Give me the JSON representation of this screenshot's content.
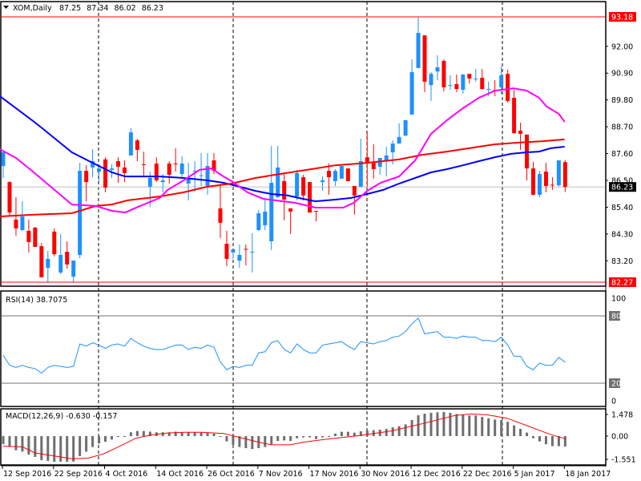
{
  "header": {
    "symbol": "XOM,Daily",
    "open": "87.25",
    "high": "87.34",
    "low": "86.02",
    "close": "86.23"
  },
  "price_axis": {
    "ticks": [
      "92.00",
      "90.90",
      "89.80",
      "88.70",
      "87.60",
      "86.50",
      "85.40",
      "84.30",
      "83.20"
    ],
    "high_line_label": "93.18",
    "low_line_label": "82.27",
    "bid_label": "86.23"
  },
  "rsi": {
    "label": "RSI(14) 38.7075",
    "axis": [
      "100",
      "80",
      "20",
      "0"
    ],
    "values": [
      45,
      36,
      34,
      36,
      34,
      33,
      29,
      34,
      36,
      35,
      34,
      35,
      55,
      53,
      56,
      54,
      51,
      54,
      55,
      53,
      60,
      56,
      53,
      51,
      50,
      50,
      52,
      54,
      54,
      50,
      52,
      51,
      54,
      52,
      39,
      32,
      35,
      34,
      36,
      36,
      47,
      48,
      56,
      58,
      50,
      47,
      55,
      50,
      47,
      47,
      54,
      55,
      56,
      57,
      53,
      50,
      57,
      56,
      55,
      57,
      58,
      61,
      62,
      66,
      73,
      78,
      64,
      65,
      66,
      61,
      61,
      60,
      62,
      61,
      61,
      58,
      58,
      57,
      61,
      54,
      44,
      44,
      35,
      32,
      38,
      36,
      36,
      43,
      38.71
    ]
  },
  "macd": {
    "label": "MACD(12,26,9) -0.630 -0.157",
    "axis": [
      "1.478",
      "0.00",
      "-1.551"
    ],
    "histogram": [
      -0.49,
      -0.65,
      -0.86,
      -0.94,
      -1.12,
      -1.26,
      -1.46,
      -1.5,
      -1.55,
      -1.55,
      -1.55,
      -1.54,
      -1.21,
      -0.94,
      -0.66,
      -0.45,
      -0.34,
      -0.21,
      -0.05,
      -0.02,
      0.23,
      0.31,
      0.31,
      0.27,
      0.23,
      0.23,
      0.23,
      0.27,
      0.23,
      0.23,
      0.23,
      0.23,
      0.19,
      0.15,
      -0.03,
      -0.32,
      -0.53,
      -0.66,
      -0.73,
      -0.78,
      -0.73,
      -0.66,
      -0.49,
      -0.29,
      -0.26,
      -0.29,
      -0.13,
      -0.08,
      -0.08,
      -0.18,
      -0.08,
      -0.02,
      0.15,
      0.26,
      0.26,
      0.21,
      0.29,
      0.34,
      0.36,
      0.39,
      0.44,
      0.53,
      0.6,
      0.71,
      0.97,
      1.26,
      1.36,
      1.41,
      1.44,
      1.46,
      1.41,
      1.34,
      1.28,
      1.25,
      1.25,
      1.16,
      1.08,
      1.0,
      0.97,
      0.87,
      0.65,
      0.44,
      0.21,
      -0.13,
      -0.32,
      -0.49,
      -0.61,
      -0.61,
      -0.63
    ],
    "signal": [
      [
        0,
        -0.61
      ],
      [
        3,
        -0.65
      ],
      [
        5,
        -1.02
      ],
      [
        10.75,
        -1.37
      ],
      [
        13.25,
        -1.34
      ],
      [
        15.75,
        -1.07
      ],
      [
        18.25,
        -0.61
      ],
      [
        20.75,
        -0.13
      ],
      [
        23.25,
        0.08
      ],
      [
        25.75,
        0.19
      ],
      [
        28.25,
        0.23
      ],
      [
        31.2,
        0.23
      ],
      [
        34.5,
        0.16
      ],
      [
        37,
        -0.08
      ],
      [
        39.5,
        -0.32
      ],
      [
        42,
        -0.53
      ],
      [
        44.9,
        -0.53
      ],
      [
        47,
        -0.37
      ],
      [
        50.75,
        -0.18
      ],
      [
        55.75,
        0.03
      ],
      [
        60.75,
        0.31
      ],
      [
        65.75,
        0.76
      ],
      [
        70.75,
        1.25
      ],
      [
        73.25,
        1.34
      ],
      [
        75.75,
        1.29
      ],
      [
        78.9,
        1.08
      ],
      [
        82.25,
        0.6
      ],
      [
        85.6,
        0.11
      ],
      [
        88,
        -0.157
      ]
    ]
  },
  "dates": [
    "12 Sep 2016",
    "22 Sep 2016",
    "4 Oct 2016",
    "14 Oct 2016",
    "26 Oct 2016",
    "7 Nov 2016",
    "17 Nov 2016",
    "30 Nov 2016",
    "12 Dec 2016",
    "22 Dec 2016",
    "5 Jan 2017",
    "18 Jan 2017"
  ],
  "colors": {
    "bull": "#1E90FF",
    "bear": "#FF0000",
    "ma_blue": "#0000FF",
    "ma_red": "#FF0000",
    "ma_magenta": "#FF00FF",
    "rsi": "#1E90FF",
    "macd_hist": "#6E6E6E",
    "macd_signal": "#FF0000"
  },
  "chart_data": {
    "type": "candlestick",
    "title": "XOM,Daily",
    "ylim": [
      82.1,
      93.18
    ],
    "candles_ohlc": [
      [
        87.09,
        87.68,
        86.6,
        87.65
      ],
      [
        86.43,
        86.47,
        85.02,
        85.18
      ],
      [
        84.89,
        85.81,
        84.23,
        84.53
      ],
      [
        84.46,
        85.64,
        84.43,
        85.02
      ],
      [
        84.43,
        84.89,
        83.54,
        83.97
      ],
      [
        84.56,
        84.59,
        83.77,
        83.77
      ],
      [
        83.8,
        83.93,
        82.52,
        82.52
      ],
      [
        82.91,
        83.61,
        82.29,
        83.28
      ],
      [
        84.4,
        84.53,
        83.38,
        83.47
      ],
      [
        82.72,
        84.3,
        82.65,
        83.44
      ],
      [
        83.57,
        84.0,
        82.88,
        83.05
      ],
      [
        82.55,
        83.21,
        82.29,
        83.21
      ],
      [
        83.44,
        87.22,
        83.31,
        86.89
      ],
      [
        86.89,
        87.12,
        85.64,
        86.43
      ],
      [
        87.03,
        87.78,
        86.63,
        87.29
      ],
      [
        86.86,
        87.16,
        86.47,
        86.99
      ],
      [
        87.36,
        87.45,
        86.01,
        86.2
      ],
      [
        86.93,
        87.16,
        86.6,
        86.99
      ],
      [
        87.29,
        87.45,
        86.4,
        87.06
      ],
      [
        87.03,
        87.32,
        86.43,
        86.8
      ],
      [
        87.52,
        88.64,
        87.52,
        88.47
      ],
      [
        88.14,
        88.21,
        87.29,
        87.75
      ],
      [
        87.16,
        87.68,
        86.7,
        87.14
      ],
      [
        86.24,
        86.86,
        85.41,
        86.6
      ],
      [
        87.19,
        87.45,
        86.43,
        86.5
      ],
      [
        86.43,
        86.76,
        86.01,
        86.5
      ],
      [
        87.19,
        87.29,
        86.37,
        86.73
      ],
      [
        87.19,
        87.82,
        86.86,
        87.16
      ],
      [
        86.76,
        87.49,
        86.6,
        87.19
      ],
      [
        86.37,
        87.22,
        85.68,
        86.6
      ],
      [
        86.86,
        87.29,
        86.04,
        86.89
      ],
      [
        86.7,
        87.62,
        86.27,
        86.71
      ],
      [
        86.27,
        87.62,
        85.91,
        87.09
      ],
      [
        87.32,
        87.62,
        86.76,
        86.89
      ],
      [
        85.35,
        86.34,
        84.13,
        84.76
      ],
      [
        83.9,
        84.43,
        82.98,
        83.28
      ],
      [
        83.54,
        83.67,
        83.28,
        83.67
      ],
      [
        83.21,
        83.87,
        82.91,
        83.44
      ],
      [
        83.69,
        83.87,
        83.01,
        83.66
      ],
      [
        83.56,
        84.33,
        82.72,
        83.57
      ],
      [
        84.46,
        85.28,
        84.43,
        85.15
      ],
      [
        84.66,
        85.78,
        84.46,
        85.22
      ],
      [
        84.0,
        87.91,
        83.64,
        86.4
      ],
      [
        85.81,
        87.91,
        85.78,
        87.03
      ],
      [
        86.47,
        86.83,
        84.86,
        85.71
      ],
      [
        85.35,
        85.35,
        84.3,
        85.22
      ],
      [
        85.84,
        86.93,
        85.68,
        86.8
      ],
      [
        86.63,
        86.73,
        85.68,
        85.88
      ],
      [
        86.43,
        86.43,
        85.18,
        85.18
      ],
      [
        85.25,
        85.25,
        84.82,
        85.22
      ],
      [
        86.43,
        86.66,
        86.07,
        86.5
      ],
      [
        86.89,
        87.19,
        85.91,
        86.63
      ],
      [
        86.47,
        86.96,
        86.27,
        86.89
      ],
      [
        86.57,
        87.09,
        86.57,
        87.09
      ],
      [
        86.99,
        86.99,
        86.47,
        86.47
      ],
      [
        86.27,
        86.27,
        85.09,
        85.88
      ],
      [
        86.24,
        88.21,
        86.24,
        87.29
      ],
      [
        87.45,
        88.47,
        86.24,
        87.19
      ],
      [
        87.26,
        87.98,
        86.57,
        86.96
      ],
      [
        87.06,
        87.42,
        86.73,
        87.42
      ],
      [
        87.29,
        87.88,
        86.66,
        87.52
      ],
      [
        87.65,
        88.14,
        87.16,
        88.01
      ],
      [
        88.01,
        88.84,
        88.01,
        88.28
      ],
      [
        88.34,
        88.97,
        88.31,
        88.97
      ],
      [
        89.2,
        91.47,
        89.2,
        90.94
      ],
      [
        91.11,
        93.18,
        91.11,
        92.55
      ],
      [
        92.45,
        92.45,
        90.12,
        90.55
      ],
      [
        90.41,
        90.94,
        89.76,
        90.87
      ],
      [
        90.97,
        91.63,
        90.61,
        91.14
      ],
      [
        91.4,
        91.47,
        90.15,
        90.32
      ],
      [
        90.4,
        90.81,
        90.22,
        90.41
      ],
      [
        90.45,
        90.84,
        90.12,
        90.25
      ],
      [
        90.22,
        90.87,
        90.05,
        90.84
      ],
      [
        90.87,
        90.87,
        90.48,
        90.68
      ],
      [
        90.66,
        91.07,
        90.55,
        90.68
      ],
      [
        90.71,
        91.07,
        90.22,
        90.25
      ],
      [
        90.23,
        90.55,
        89.95,
        90.25
      ],
      [
        90.21,
        90.61,
        89.95,
        90.17
      ],
      [
        90.32,
        91.17,
        90.05,
        90.81
      ],
      [
        90.87,
        91.04,
        89.69,
        89.76
      ],
      [
        89.89,
        90.22,
        88.41,
        88.44
      ],
      [
        88.54,
        88.87,
        87.75,
        88.41
      ],
      [
        88.38,
        88.38,
        86.5,
        86.99
      ],
      [
        86.99,
        87.26,
        85.88,
        85.91
      ],
      [
        85.91,
        86.89,
        85.81,
        86.76
      ],
      [
        86.86,
        87.22,
        86.01,
        86.27
      ],
      [
        86.32,
        86.63,
        86.11,
        86.29
      ],
      [
        86.3,
        87.32,
        86.24,
        87.32
      ],
      [
        87.25,
        87.34,
        86.02,
        86.23
      ]
    ],
    "moving_averages": [
      {
        "name": "blue",
        "points": [
          [
            -0.5,
            89.95
          ],
          [
            4.5,
            88.97
          ],
          [
            6.1,
            88.64
          ],
          [
            10.75,
            87.65
          ],
          [
            13.25,
            87.32
          ],
          [
            17,
            86.83
          ],
          [
            19.1,
            86.66
          ],
          [
            24.5,
            86.66
          ],
          [
            28.25,
            86.6
          ],
          [
            32,
            86.5
          ],
          [
            34.5,
            86.4
          ],
          [
            37,
            86.24
          ],
          [
            39.5,
            86.07
          ],
          [
            42,
            85.94
          ],
          [
            44.5,
            85.88
          ],
          [
            47,
            85.74
          ],
          [
            48.9,
            85.64
          ],
          [
            52,
            85.71
          ],
          [
            54.5,
            85.78
          ],
          [
            57,
            85.94
          ],
          [
            59.5,
            86.11
          ],
          [
            62,
            86.37
          ],
          [
            64.5,
            86.6
          ],
          [
            67,
            86.83
          ],
          [
            69.5,
            86.96
          ],
          [
            72,
            87.12
          ],
          [
            74.5,
            87.29
          ],
          [
            77,
            87.45
          ],
          [
            79.5,
            87.59
          ],
          [
            82,
            87.65
          ],
          [
            83.9,
            87.68
          ],
          [
            85.75,
            87.82
          ],
          [
            87.9,
            87.88
          ]
        ]
      },
      {
        "name": "red",
        "points": [
          [
            -0.5,
            85.02
          ],
          [
            4.5,
            85.09
          ],
          [
            10.75,
            85.15
          ],
          [
            14.5,
            85.45
          ],
          [
            17,
            85.51
          ],
          [
            19.5,
            85.68
          ],
          [
            24.5,
            85.84
          ],
          [
            28.25,
            86.01
          ],
          [
            32,
            86.24
          ],
          [
            35.75,
            86.37
          ],
          [
            39.5,
            86.6
          ],
          [
            43.25,
            86.76
          ],
          [
            48.25,
            86.96
          ],
          [
            52,
            87.12
          ],
          [
            57,
            87.22
          ],
          [
            62,
            87.36
          ],
          [
            65.6,
            87.55
          ],
          [
            69.5,
            87.68
          ],
          [
            74.5,
            87.88
          ],
          [
            77,
            87.98
          ],
          [
            80.75,
            88.05
          ],
          [
            84.5,
            88.11
          ],
          [
            87.9,
            88.18
          ]
        ]
      },
      {
        "name": "magenta",
        "points": [
          [
            -0.5,
            87.78
          ],
          [
            2,
            87.42
          ],
          [
            4.5,
            86.89
          ],
          [
            7,
            86.34
          ],
          [
            10.75,
            85.51
          ],
          [
            14.5,
            85.45
          ],
          [
            17,
            85.25
          ],
          [
            19.1,
            85.18
          ],
          [
            21.1,
            85.41
          ],
          [
            24.5,
            85.78
          ],
          [
            25.75,
            86.11
          ],
          [
            28.25,
            86.5
          ],
          [
            30.75,
            86.93
          ],
          [
            32.6,
            86.99
          ],
          [
            34.5,
            86.66
          ],
          [
            35.75,
            86.47
          ],
          [
            38.25,
            86.01
          ],
          [
            40.75,
            85.74
          ],
          [
            42.6,
            85.68
          ],
          [
            45.75,
            85.58
          ],
          [
            48.9,
            85.38
          ],
          [
            53.25,
            85.38
          ],
          [
            54.9,
            85.58
          ],
          [
            57,
            86.07
          ],
          [
            59.1,
            86.4
          ],
          [
            62,
            86.66
          ],
          [
            64.5,
            87.32
          ],
          [
            67,
            88.41
          ],
          [
            69.5,
            88.97
          ],
          [
            72,
            89.46
          ],
          [
            74.5,
            89.89
          ],
          [
            77,
            90.18
          ],
          [
            79.9,
            90.28
          ],
          [
            82,
            90.18
          ],
          [
            83.9,
            89.89
          ],
          [
            85.1,
            89.53
          ],
          [
            87,
            89.23
          ],
          [
            87.9,
            88.9
          ]
        ]
      }
    ]
  }
}
